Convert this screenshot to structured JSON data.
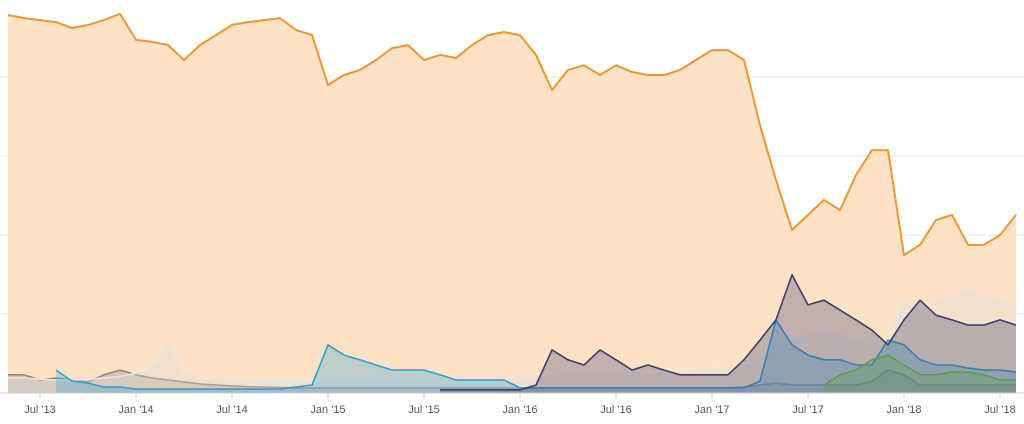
{
  "chart_data": {
    "type": "area",
    "categories": [
      null,
      null,
      "Jul '13",
      null,
      null,
      null,
      null,
      null,
      "Jan '14",
      null,
      null,
      null,
      null,
      null,
      "Jul '14",
      null,
      null,
      null,
      null,
      null,
      "Jan '15",
      null,
      null,
      null,
      null,
      null,
      "Jul '15",
      null,
      null,
      null,
      null,
      null,
      "Jan '16",
      null,
      null,
      null,
      null,
      null,
      "Jul '16",
      null,
      null,
      null,
      null,
      null,
      "Jan '17",
      null,
      null,
      null,
      null,
      null,
      "Jul '17",
      null,
      null,
      null,
      null,
      null,
      "Jan '18",
      null,
      null,
      null,
      null,
      null,
      "Jul '18",
      null
    ],
    "ylim": [
      0,
      100
    ],
    "yticks": [
      20,
      40,
      60,
      80
    ],
    "grid": true,
    "series": [
      {
        "color": "#f0962e",
        "fill": "#fde2c6",
        "values": [
          95.7,
          94.9,
          94.4,
          93.9,
          92.4,
          93.2,
          94.4,
          96,
          89.4,
          88.9,
          88.1,
          84.3,
          88.1,
          90.6,
          93.2,
          93.9,
          94.4,
          94.9,
          91.9,
          90.6,
          78,
          80.5,
          81.8,
          84.3,
          87.3,
          88.1,
          84.3,
          85.6,
          84.8,
          88.1,
          90.6,
          91.4,
          90.6,
          85.6,
          76.7,
          81.8,
          83,
          80.5,
          83,
          81.3,
          80.5,
          80.5,
          81.8,
          84.3,
          86.8,
          86.8,
          84.3,
          67.8,
          53.9,
          41.3,
          45.1,
          48.9,
          46.3,
          55.2,
          61.5,
          61.5,
          34.9,
          37.5,
          43.8,
          45.1,
          37.5,
          37.5,
          40,
          45.1
        ]
      },
      {
        "color": "#8a8a8a",
        "fill": "rgba(140,140,140,0.35)",
        "values": [
          4.6,
          4.6,
          3.3,
          3.8,
          3.3,
          2.8,
          4.6,
          5.8,
          4.6,
          3.8,
          3.3,
          2.8,
          2.3,
          2,
          1.8,
          1.6,
          1.5,
          1.4,
          1.3,
          1.3,
          1.3,
          1.3,
          1.3,
          1.3,
          1.3,
          1.3,
          1.3,
          1.3,
          1.3,
          1.3,
          1.3,
          1.3,
          1.3,
          1.3,
          1.3,
          1.3,
          1.3,
          1.3,
          1.3,
          1.3,
          1.3,
          1.3,
          1.3,
          1.3,
          1.3,
          1.3,
          1.5,
          2,
          2.5,
          2,
          2,
          2,
          2,
          2,
          3,
          5.8,
          4.6,
          2,
          2,
          2,
          2,
          2,
          2,
          2
        ]
      },
      {
        "color": "#e6e6e6",
        "fill": "rgba(220,220,220,0.3)",
        "values": [
          3.8,
          3.8,
          3.5,
          3.3,
          3.3,
          3.5,
          3.8,
          4.2,
          5,
          6.5,
          12.2,
          5,
          4,
          3.5,
          3.3,
          3,
          3,
          3,
          3,
          3,
          3.5,
          3.3,
          3.3,
          3.5,
          3.5,
          3.8,
          3.8,
          3.8,
          3.8,
          3.8,
          3.8,
          3.8,
          3.8,
          4,
          4.5,
          5,
          5,
          5,
          5,
          5,
          5,
          5.5,
          5.5,
          6,
          6,
          6.5,
          7,
          8.4,
          12.2,
          13.4,
          14.7,
          15.9,
          14.7,
          13.4,
          12.2,
          13.4,
          23.5,
          21,
          23.5,
          24.8,
          26,
          24.8,
          23.5,
          22.3
        ]
      },
      {
        "color": "#2ea0d6",
        "fill": "rgba(46,160,214,0.3)",
        "values": [
          null,
          null,
          null,
          5.8,
          3,
          2.5,
          1.5,
          1.5,
          1,
          1,
          1,
          1,
          1,
          1,
          1,
          1,
          1,
          1,
          1.5,
          2,
          12.2,
          9.6,
          8.4,
          7.1,
          5.8,
          5.8,
          5.8,
          4.6,
          3.3,
          3.3,
          3.3,
          3.3,
          1.3,
          1.3,
          1.3,
          1.3,
          1.3,
          1.3,
          1.3,
          1.3,
          1.3,
          1.3,
          1.3,
          1.3,
          1.3,
          1.3,
          1.3,
          3,
          18.5,
          12.2,
          9.6,
          8.4,
          8.4,
          7.1,
          7.1,
          13.4,
          12.2,
          8.4,
          7.1,
          7.1,
          6.3,
          5.8,
          5.8,
          5.3
        ]
      },
      {
        "color": "#3c3c6e",
        "fill": "rgba(60,60,110,0.3)",
        "values": [
          null,
          null,
          null,
          null,
          null,
          null,
          null,
          null,
          null,
          null,
          null,
          null,
          null,
          null,
          null,
          null,
          null,
          null,
          null,
          null,
          null,
          null,
          null,
          null,
          null,
          null,
          null,
          0.8,
          0.8,
          0.8,
          0.8,
          0.8,
          0.8,
          2,
          10.9,
          8.4,
          7.1,
          10.9,
          8.4,
          5.8,
          7.1,
          5.8,
          4.6,
          4.6,
          4.6,
          4.6,
          8.4,
          13.4,
          18.5,
          29.9,
          22.3,
          23.5,
          21,
          18.5,
          15.9,
          12.2,
          18.5,
          23.5,
          19.7,
          18.5,
          17.2,
          17.2,
          18.5,
          17.2
        ]
      },
      {
        "color": "#5aa043",
        "fill": "rgba(90,160,67,0.3)",
        "values": [
          null,
          null,
          null,
          null,
          null,
          null,
          null,
          null,
          null,
          null,
          null,
          null,
          null,
          null,
          null,
          null,
          null,
          null,
          null,
          null,
          null,
          null,
          null,
          null,
          null,
          null,
          null,
          null,
          null,
          null,
          null,
          null,
          null,
          null,
          null,
          null,
          null,
          null,
          null,
          null,
          null,
          null,
          null,
          null,
          null,
          null,
          null,
          null,
          null,
          null,
          null,
          2,
          4.6,
          5.8,
          8.4,
          9.6,
          7.1,
          4.6,
          4.6,
          5.3,
          5.3,
          4.6,
          3.3,
          3.3
        ]
      }
    ]
  }
}
